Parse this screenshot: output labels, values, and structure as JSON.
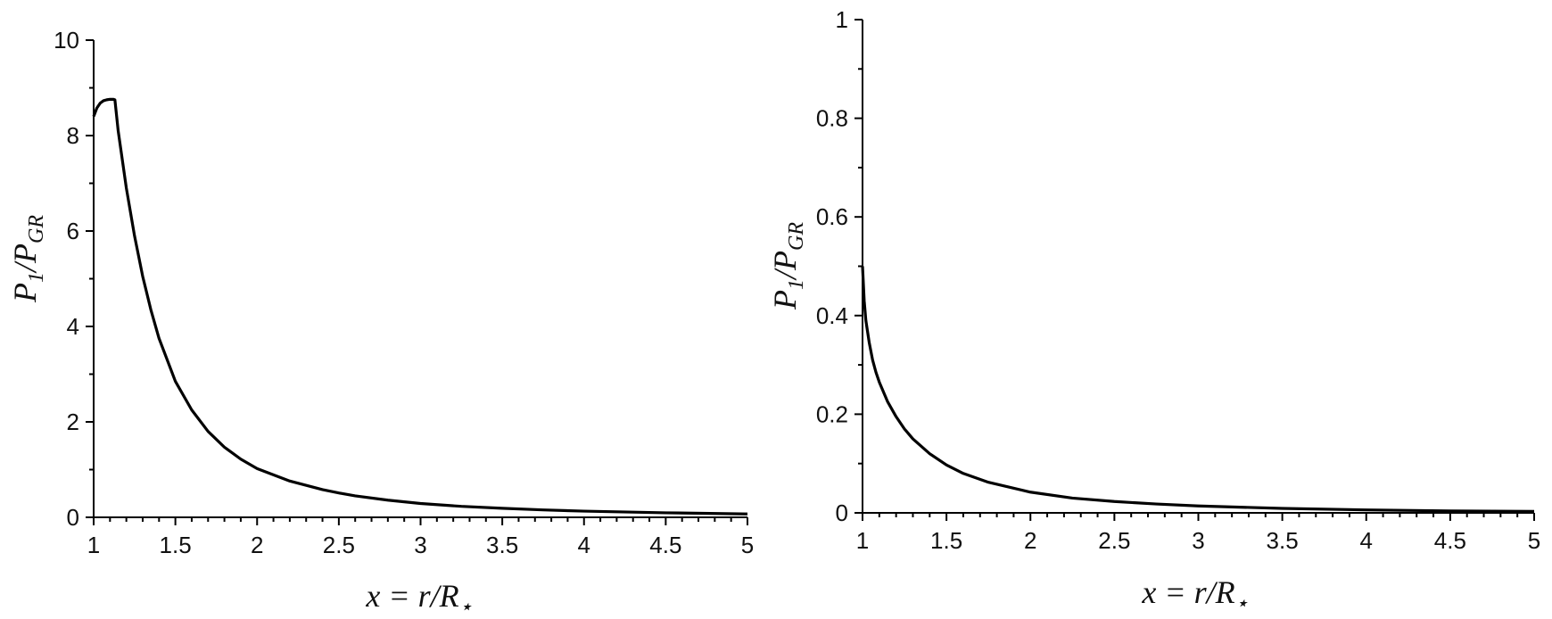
{
  "chart_data": [
    {
      "type": "line",
      "title": "",
      "xlabel": {
        "main": "x = r/R",
        "sub": "⋆"
      },
      "ylabel": {
        "main": "P",
        "sub": "1",
        "mid": "/P",
        "sub2": "GR"
      },
      "xlim": [
        1,
        5
      ],
      "ylim": [
        0,
        10
      ],
      "xticks": [
        1,
        1.5,
        2,
        2.5,
        3,
        3.5,
        4,
        4.5,
        5
      ],
      "xtick_labels": [
        "1",
        "1.5",
        "2",
        "2.5",
        "3",
        "3.5",
        "4",
        "4.5",
        "5"
      ],
      "yticks": [
        0,
        2,
        4,
        6,
        8,
        10
      ],
      "ytick_labels": [
        "0",
        "2",
        "4",
        "6",
        "8",
        "10"
      ],
      "grid": false,
      "series": [
        {
          "x": [
            1.0,
            1.02,
            1.04,
            1.06,
            1.08,
            1.1,
            1.12,
            1.13,
            1.15,
            1.2,
            1.25,
            1.3,
            1.35,
            1.4,
            1.5,
            1.6,
            1.7,
            1.8,
            1.9,
            2.0,
            2.2,
            2.4,
            2.5,
            2.6,
            2.8,
            3.0,
            3.25,
            3.5,
            3.75,
            4.0,
            4.5,
            5.0
          ],
          "y": [
            8.4,
            8.58,
            8.68,
            8.73,
            8.75,
            8.76,
            8.76,
            8.75,
            8.1,
            6.9,
            5.9,
            5.05,
            4.35,
            3.75,
            2.85,
            2.25,
            1.8,
            1.47,
            1.22,
            1.02,
            0.76,
            0.58,
            0.51,
            0.45,
            0.36,
            0.29,
            0.23,
            0.19,
            0.155,
            0.13,
            0.095,
            0.07
          ]
        }
      ]
    },
    {
      "type": "line",
      "title": "",
      "xlabel": {
        "main": "x = r/R",
        "sub": "⋆"
      },
      "ylabel": {
        "main": "P",
        "sub": "1",
        "mid": "/P",
        "sub2": "GR"
      },
      "xlim": [
        1,
        5
      ],
      "ylim": [
        0,
        1
      ],
      "xticks": [
        1,
        1.5,
        2,
        2.5,
        3,
        3.5,
        4,
        4.5,
        5
      ],
      "xtick_labels": [
        "1",
        "1.5",
        "2",
        "2.5",
        "3",
        "3.5",
        "4",
        "4.5",
        "5"
      ],
      "yticks": [
        0,
        0.2,
        0.4,
        0.6,
        0.8,
        1
      ],
      "ytick_labels": [
        "0",
        "0.2",
        "0.4",
        "0.6",
        "0.8",
        "1"
      ],
      "grid": false,
      "series": [
        {
          "x": [
            1.0,
            1.01,
            1.02,
            1.04,
            1.06,
            1.08,
            1.1,
            1.15,
            1.2,
            1.25,
            1.3,
            1.4,
            1.5,
            1.6,
            1.75,
            2.0,
            2.25,
            2.5,
            2.75,
            3.0,
            3.5,
            4.0,
            4.5,
            5.0
          ],
          "y": [
            0.5,
            0.43,
            0.39,
            0.345,
            0.31,
            0.285,
            0.265,
            0.225,
            0.195,
            0.17,
            0.15,
            0.12,
            0.097,
            0.08,
            0.062,
            0.042,
            0.03,
            0.023,
            0.018,
            0.014,
            0.009,
            0.006,
            0.004,
            0.003
          ]
        }
      ]
    }
  ]
}
